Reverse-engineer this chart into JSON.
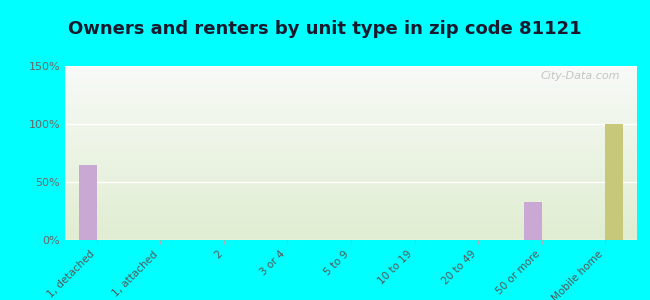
{
  "title": "Owners and renters by unit type in zip code 81121",
  "categories": [
    "1, detached",
    "1, attached",
    "2",
    "3 or 4",
    "5 to 9",
    "10 to 19",
    "20 to 49",
    "50 or more",
    "Mobile home"
  ],
  "owner_values": [
    65,
    0,
    0,
    0,
    0,
    0,
    0,
    33,
    0
  ],
  "renter_values": [
    0,
    0,
    0,
    0,
    0,
    0,
    0,
    0,
    100
  ],
  "owner_color": "#c9a8d4",
  "renter_color": "#c8c87a",
  "background_color": "#00ffff",
  "ylim": [
    0,
    150
  ],
  "yticks": [
    0,
    50,
    100,
    150
  ],
  "ytick_labels": [
    "0%",
    "50%",
    "100%",
    "150%"
  ],
  "title_fontsize": 13,
  "watermark": "City-Data.com",
  "bar_width": 0.55
}
